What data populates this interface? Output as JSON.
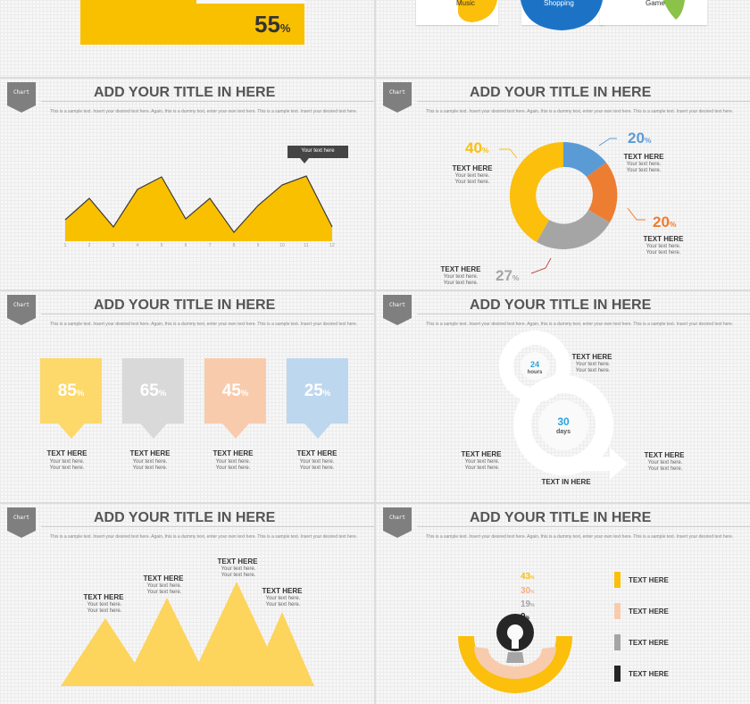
{
  "top_left": {
    "value": "55",
    "unit": "%"
  },
  "top_right": {
    "labels": [
      "Music",
      "Shopping",
      "Game"
    ]
  },
  "common": {
    "tag": "Chart",
    "title": "ADD YOUR TITLE IN HERE",
    "sample": "This is a sample text. Insert your desired text here. Again, this is a dummy text, enter your own text here. This is a sample text. Insert your desired text here."
  },
  "area_slide": {
    "tooltip": "Your text here",
    "x_ticks": [
      "1",
      "2",
      "3",
      "4",
      "5",
      "6",
      "7",
      "8",
      "9",
      "10",
      "11",
      "12"
    ],
    "colors": {
      "fill": "#f9c000",
      "tooltip": "#454545"
    }
  },
  "donut_slide": {
    "segments": [
      {
        "value": "40",
        "label": "TEXT HERE",
        "desc": "Your text here. Your text here.",
        "color": "#fbbf0c"
      },
      {
        "value": "20",
        "label": "TEXT HERE",
        "desc": "Your text here. Your text here.",
        "color": "#5b9bd5"
      },
      {
        "value": "20",
        "label": "TEXT HERE",
        "desc": "Your text here. Your text here.",
        "color": "#ed7d31"
      },
      {
        "value": "27",
        "label": "TEXT HERE",
        "desc": "Your text here. Your text here.",
        "color": "#a5a5a5"
      }
    ],
    "unit": "%"
  },
  "boxes_slide": {
    "unit": "%",
    "boxes": [
      {
        "value": "85",
        "label": "TEXT HERE",
        "desc": "Your text here. Your text here.",
        "color": "#fdd86a"
      },
      {
        "value": "65",
        "label": "TEXT HERE",
        "desc": "Your text here. Your text here.",
        "color": "#d9d9d9"
      },
      {
        "value": "45",
        "label": "TEXT HERE",
        "desc": "Your text here. Your text here.",
        "color": "#f8cbad"
      },
      {
        "value": "25",
        "label": "TEXT HERE",
        "desc": "Your text here. Your text here.",
        "color": "#bdd7ee"
      }
    ]
  },
  "cycle_slide": {
    "top": {
      "value": "24",
      "unit": "hours"
    },
    "middle": {
      "value": "30",
      "unit": "days"
    },
    "labels": [
      {
        "label": "TEXT HERE",
        "desc": "Your text here. Your text here."
      },
      {
        "label": "TEXT HERE",
        "desc": "Your text here. Your text here."
      },
      {
        "label": "TEXT HERE",
        "desc": "Your text here. Your text here."
      },
      {
        "label": "TEXT IN HERE"
      }
    ]
  },
  "mountains_slide": {
    "peaks": [
      {
        "label": "TEXT HERE",
        "desc": "Your text here. Your text here."
      },
      {
        "label": "TEXT HERE",
        "desc": "Your text here. Your text here."
      },
      {
        "label": "TEXT HERE",
        "desc": "Your text here. Your text here."
      },
      {
        "label": "TEXT HERE",
        "desc": "Your text here. Your text here."
      }
    ],
    "color": "#fdd45c"
  },
  "semicircle_slide": {
    "unit": "%",
    "rings": [
      {
        "value": "43",
        "color": "#fbbf0c"
      },
      {
        "value": "30",
        "color": "#f8cbad"
      },
      {
        "value": "19",
        "color": "#a5a5a5"
      },
      {
        "value": "9",
        "color": "#262626"
      }
    ],
    "legend": [
      "TEXT HERE",
      "TEXT HERE",
      "TEXT HERE",
      "TEXT HERE"
    ]
  }
}
